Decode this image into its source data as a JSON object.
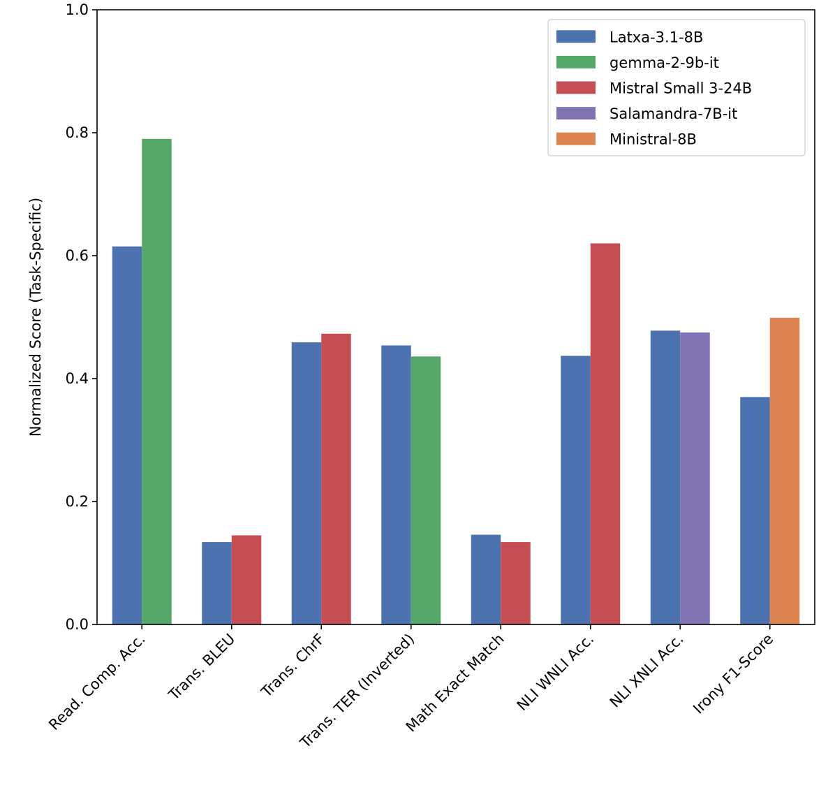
{
  "chart_data": {
    "type": "bar",
    "title": "",
    "xlabel": "",
    "ylabel": "Normalized Score (Task-Specific)",
    "ylim": [
      0,
      1.0
    ],
    "yticks": [
      "0.0",
      "0.2",
      "0.4",
      "0.6",
      "0.8",
      "1.0"
    ],
    "grid": false,
    "legend_position": "top-right",
    "categories": [
      "Read. Comp. Acc.",
      "Trans. BLEU",
      "Trans. ChrF",
      "Trans. TER (Inverted)",
      "Math Exact Match",
      "NLI WNLI Acc.",
      "NLI XNLI Acc.",
      "Irony F1-Score"
    ],
    "series": [
      {
        "name": "Latxa-3.1-8B",
        "color": "#4c72b0"
      },
      {
        "name": "gemma-2-9b-it",
        "color": "#55a868"
      },
      {
        "name": "Mistral Small 3-24B",
        "color": "#c44e52"
      },
      {
        "name": "Salamandra-7B-it",
        "color": "#8172b3"
      },
      {
        "name": "Ministral-8B",
        "color": "#dd8452"
      }
    ],
    "groups": [
      {
        "category": "Read. Comp. Acc.",
        "bars": [
          {
            "series": 0,
            "value": 0.615
          },
          {
            "series": 1,
            "value": 0.79
          }
        ]
      },
      {
        "category": "Trans. BLEU",
        "bars": [
          {
            "series": 0,
            "value": 0.134
          },
          {
            "series": 2,
            "value": 0.145
          }
        ]
      },
      {
        "category": "Trans. ChrF",
        "bars": [
          {
            "series": 0,
            "value": 0.459
          },
          {
            "series": 2,
            "value": 0.473
          }
        ]
      },
      {
        "category": "Trans. TER (Inverted)",
        "bars": [
          {
            "series": 0,
            "value": 0.454
          },
          {
            "series": 1,
            "value": 0.436
          }
        ]
      },
      {
        "category": "Math Exact Match",
        "bars": [
          {
            "series": 0,
            "value": 0.146
          },
          {
            "series": 2,
            "value": 0.134
          }
        ]
      },
      {
        "category": "NLI WNLI Acc.",
        "bars": [
          {
            "series": 0,
            "value": 0.437
          },
          {
            "series": 2,
            "value": 0.62
          }
        ]
      },
      {
        "category": "NLI XNLI Acc.",
        "bars": [
          {
            "series": 0,
            "value": 0.478
          },
          {
            "series": 3,
            "value": 0.475
          }
        ]
      },
      {
        "category": "Irony F1-Score",
        "bars": [
          {
            "series": 0,
            "value": 0.37
          },
          {
            "series": 4,
            "value": 0.499
          }
        ]
      }
    ]
  }
}
